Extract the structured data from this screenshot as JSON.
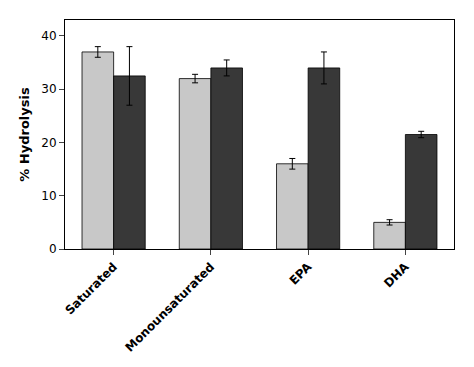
{
  "chart_data": {
    "type": "bar",
    "categories": [
      "Saturated",
      "Monounsaturated",
      "EPA",
      "DHA"
    ],
    "series": [
      {
        "color": "#c8c8c8",
        "values": [
          37.0,
          32.0,
          16.0,
          5.0
        ],
        "errors": [
          1.0,
          0.8,
          1.0,
          0.5
        ]
      },
      {
        "color": "#383838",
        "values": [
          32.5,
          34.0,
          34.0,
          21.5
        ],
        "errors": [
          5.5,
          1.5,
          3.0,
          0.6
        ]
      }
    ],
    "ylabel": "% Hydrolysis",
    "ylim": [
      0,
      43
    ],
    "yticks": [
      0,
      10,
      20,
      30,
      40
    ],
    "grid": false
  }
}
